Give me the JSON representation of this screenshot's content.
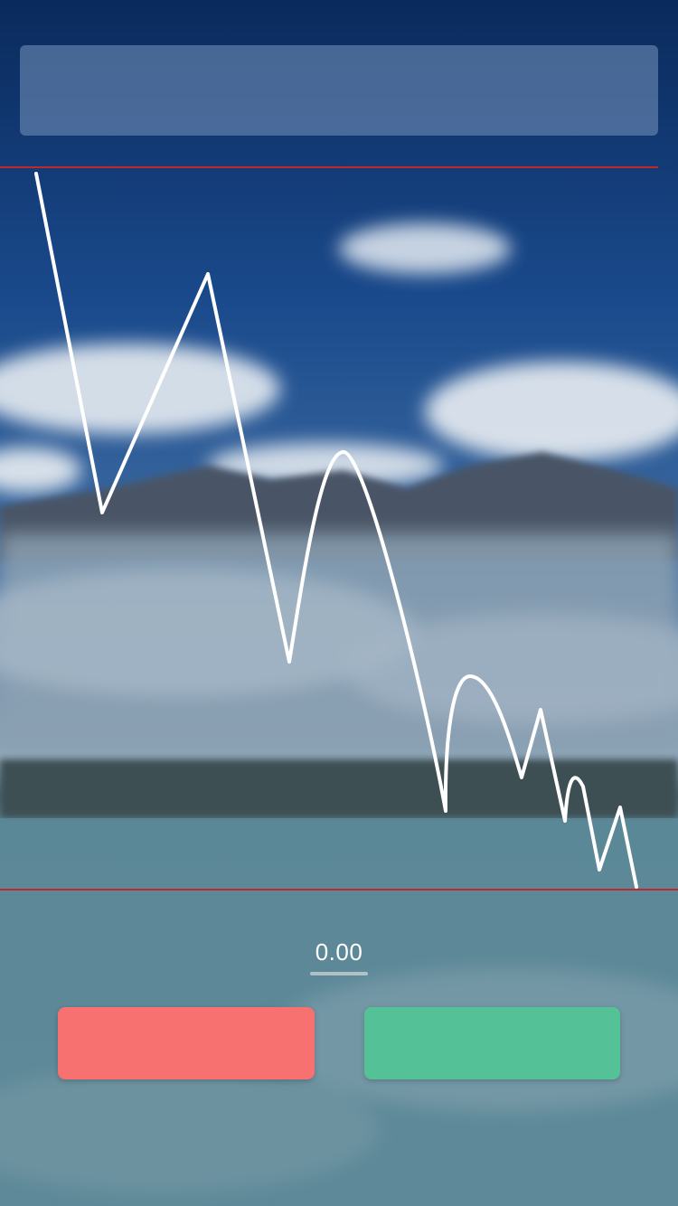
{
  "colors": {
    "guide_line": "#c0282d",
    "sell_button": "#f77170",
    "buy_button": "#55c196",
    "line": "#ffffff"
  },
  "readout": {
    "value": "0.00"
  }
}
